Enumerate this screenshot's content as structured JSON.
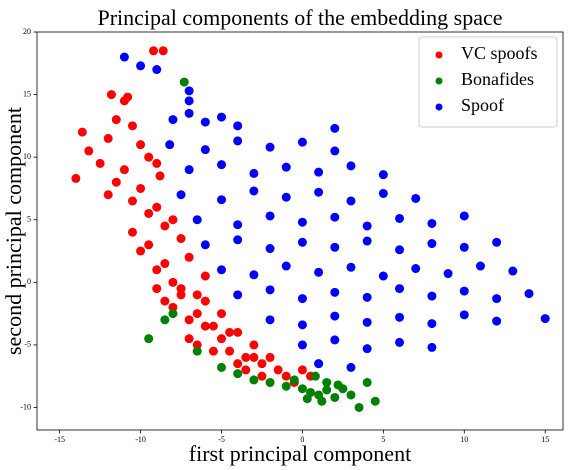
{
  "chart_data": {
    "type": "scatter",
    "title": "Principal components of the embedding space",
    "xlabel": "first principal component",
    "ylabel": "second principal component",
    "xlim": [
      -16.4,
      16.1
    ],
    "ylim": [
      -11.8,
      20.0
    ],
    "xticks": [
      -15,
      -10,
      -5,
      0,
      5,
      10,
      15
    ],
    "yticks": [
      -10,
      -5,
      0,
      5,
      10,
      15,
      20
    ],
    "legend": "upper right",
    "series": [
      {
        "name": "VC spoofs",
        "color": "#ff0000",
        "x": [
          -14.0,
          -13.6,
          -13.2,
          -12.5,
          -12.0,
          -11.5,
          -11.0,
          -10.5,
          -10.0,
          -9.5,
          -9.0,
          -8.8,
          -12.0,
          -11.5,
          -11.0,
          -10.5,
          -10.0,
          -9.5,
          -9.0,
          -8.5,
          -8.0,
          -7.5,
          -10.5,
          -10.0,
          -9.5,
          -9.0,
          -8.5,
          -8.0,
          -7.5,
          -7.0,
          -6.5,
          -6.0,
          -9.0,
          -8.5,
          -8.0,
          -7.5,
          -7.0,
          -6.5,
          -6.0,
          -5.5,
          -5.0,
          -4.5,
          -7.0,
          -6.5,
          -6.0,
          -5.5,
          -5.0,
          -4.5,
          -4.0,
          -3.5,
          -3.0,
          -2.5,
          -4.0,
          -3.5,
          -3.0,
          -2.5,
          -2.0,
          -1.5,
          -1.0,
          -0.5,
          0.0,
          0.5,
          -9.2,
          -8.6,
          -11.8,
          -10.8
        ],
        "values": [
          8.3,
          12.0,
          10.5,
          9.5,
          11.5,
          13.0,
          14.5,
          12.5,
          11.0,
          10.0,
          9.5,
          8.5,
          7.0,
          8.0,
          9.0,
          6.5,
          7.5,
          5.5,
          6.0,
          4.5,
          5.0,
          3.5,
          4.0,
          2.5,
          3.0,
          1.0,
          1.5,
          0.0,
          -0.5,
          2.0,
          -1.0,
          0.5,
          -0.5,
          -1.5,
          -2.0,
          -1.0,
          -3.0,
          -2.5,
          -1.5,
          -3.5,
          -2.5,
          -4.0,
          -4.5,
          -5.0,
          -3.5,
          -5.5,
          -4.5,
          -5.5,
          -4.0,
          -6.0,
          -5.0,
          -6.5,
          -6.5,
          -7.0,
          -6.0,
          -7.5,
          -6.0,
          -7.0,
          -7.5,
          -8.0,
          -7.0,
          -7.5,
          18.5,
          18.5,
          15.0,
          14.8
        ]
      },
      {
        "name": "Bonafides",
        "color": "#008000",
        "x": [
          -7.3,
          -8.0,
          -6.5,
          -5.0,
          -4.0,
          -3.0,
          -2.0,
          -1.0,
          0.0,
          0.5,
          1.0,
          1.5,
          2.0,
          2.5,
          3.0,
          0.8,
          1.5,
          2.2,
          0.3,
          1.2,
          4.0,
          4.5,
          3.5,
          1.0,
          -0.5,
          -9.5,
          -8.5
        ],
        "values": [
          16.0,
          -2.5,
          -5.5,
          -6.8,
          -7.3,
          -7.8,
          -8.0,
          -8.3,
          -8.5,
          -8.8,
          -9.0,
          -8.6,
          -9.2,
          -8.5,
          -9.0,
          -7.5,
          -8.0,
          -8.2,
          -9.3,
          -9.5,
          -8.0,
          -9.5,
          -10.0,
          -6.5,
          -7.8,
          -4.5,
          -3.0
        ]
      },
      {
        "name": "Spoof",
        "color": "#0000ff",
        "x": [
          -8,
          -7,
          -6,
          -5,
          -4,
          -8.2,
          -6,
          -4,
          -2,
          0,
          2,
          -7,
          -5,
          -3,
          -1,
          1,
          3,
          5,
          -7.5,
          -5,
          -3,
          -1,
          1,
          3,
          5,
          7,
          -6.5,
          -4,
          -2,
          0,
          2,
          4,
          6,
          8,
          10,
          -6,
          -4,
          -2,
          0,
          2,
          4,
          6,
          8,
          10,
          12,
          -5,
          -3,
          -1,
          1,
          3,
          5,
          7,
          9,
          11,
          13,
          -4,
          -2,
          0,
          2,
          4,
          6,
          8,
          10,
          12,
          14,
          -2,
          0,
          2,
          4,
          6,
          8,
          10,
          12,
          15,
          0,
          2,
          4,
          6,
          8,
          1,
          3,
          -11,
          -10,
          -9,
          -7,
          2,
          -7
        ],
        "values": [
          13,
          13.5,
          12.8,
          13.2,
          12.5,
          11,
          10.6,
          11.3,
          10.8,
          11.2,
          10.5,
          9,
          9.4,
          8.7,
          9.2,
          8.8,
          9.3,
          8.6,
          7,
          6.6,
          7.3,
          6.8,
          7.2,
          6.5,
          7.1,
          6.7,
          5,
          4.6,
          5.3,
          4.8,
          5.2,
          4.5,
          5.1,
          4.7,
          5.3,
          3,
          3.4,
          2.7,
          3.2,
          2.8,
          3.3,
          2.6,
          3.1,
          2.8,
          3.2,
          1,
          0.6,
          1.3,
          0.8,
          1.2,
          0.5,
          1.1,
          0.7,
          1.3,
          0.9,
          -1,
          -0.6,
          -1.3,
          -0.8,
          -1.2,
          -0.5,
          -1.1,
          -0.7,
          -1.3,
          -0.9,
          -3,
          -3.4,
          -2.7,
          -3.2,
          -2.8,
          -3.3,
          -2.6,
          -3.1,
          -2.9,
          -5,
          -4.6,
          -5.3,
          -4.8,
          -5.2,
          -6.5,
          -6.8,
          18,
          17.3,
          17,
          15.3,
          12.3,
          14.5
        ]
      }
    ]
  }
}
